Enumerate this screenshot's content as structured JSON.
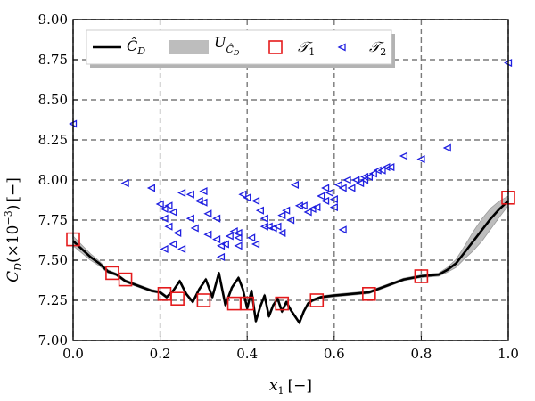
{
  "chart_data": {
    "type": "line",
    "xlabel_main": "x",
    "xlabel_sub": "1",
    "xlabel_unit": "[−]",
    "ylabel_main": "C",
    "ylabel_sub": "D",
    "ylabel_factor": "(×10",
    "ylabel_exp": "−3",
    "ylabel_tail": ")",
    "ylabel_unit": "[−]",
    "xlim": [
      0.0,
      1.0
    ],
    "ylim": [
      7.0,
      9.0
    ],
    "xticks": [
      0.0,
      0.2,
      0.4,
      0.6,
      0.8,
      1.0
    ],
    "xtick_labels": [
      "0.0",
      "0.2",
      "0.4",
      "0.6",
      "0.8",
      "1.0"
    ],
    "yticks": [
      7.0,
      7.25,
      7.5,
      7.75,
      8.0,
      8.25,
      8.5,
      8.75,
      9.0
    ],
    "ytick_labels": [
      "7.00",
      "7.25",
      "7.50",
      "7.75",
      "8.00",
      "8.25",
      "8.50",
      "8.75",
      "9.00"
    ],
    "grid": true,
    "legend_position": "top-left",
    "legend": [
      {
        "key": "line",
        "main": "Ĉ",
        "sub": "D"
      },
      {
        "key": "band",
        "main": "U",
        "sub": "Ĉ",
        "subsub": "D"
      },
      {
        "key": "t1",
        "main": "𝒯",
        "sub": "1"
      },
      {
        "key": "t2",
        "main": "𝒯",
        "sub": "2"
      }
    ],
    "colors": {
      "line": "#000000",
      "band": "#bdbdbd",
      "t1": "#e41a1c",
      "t2": "#1f1fe0"
    },
    "series": [
      {
        "key": "line",
        "x": [
          0.0,
          0.02,
          0.04,
          0.06,
          0.08,
          0.1,
          0.12,
          0.14,
          0.16,
          0.18,
          0.2,
          0.215,
          0.23,
          0.245,
          0.26,
          0.275,
          0.29,
          0.305,
          0.32,
          0.335,
          0.35,
          0.365,
          0.38,
          0.39,
          0.4,
          0.41,
          0.42,
          0.43,
          0.44,
          0.45,
          0.46,
          0.47,
          0.48,
          0.49,
          0.5,
          0.51,
          0.52,
          0.53,
          0.54,
          0.55,
          0.57,
          0.6,
          0.64,
          0.68,
          0.72,
          0.76,
          0.8,
          0.84,
          0.86,
          0.88,
          0.9,
          0.92,
          0.94,
          0.96,
          0.98,
          1.0
        ],
        "y": [
          7.62,
          7.57,
          7.52,
          7.48,
          7.43,
          7.41,
          7.37,
          7.35,
          7.33,
          7.31,
          7.3,
          7.27,
          7.31,
          7.37,
          7.29,
          7.24,
          7.32,
          7.38,
          7.27,
          7.42,
          7.22,
          7.33,
          7.39,
          7.32,
          7.2,
          7.31,
          7.12,
          7.21,
          7.28,
          7.15,
          7.22,
          7.26,
          7.18,
          7.24,
          7.19,
          7.15,
          7.11,
          7.18,
          7.23,
          7.25,
          7.27,
          7.28,
          7.29,
          7.3,
          7.34,
          7.38,
          7.4,
          7.41,
          7.44,
          7.48,
          7.55,
          7.62,
          7.69,
          7.76,
          7.82,
          7.87
        ],
        "band_halfwidth": [
          0.03,
          0.025,
          0.02,
          0.015,
          0.01,
          0.008,
          0.008,
          0.008,
          0.008,
          0.008,
          0.008,
          0.008,
          0.008,
          0.008,
          0.008,
          0.008,
          0.008,
          0.008,
          0.008,
          0.008,
          0.008,
          0.008,
          0.008,
          0.008,
          0.008,
          0.008,
          0.008,
          0.008,
          0.008,
          0.008,
          0.008,
          0.008,
          0.008,
          0.008,
          0.008,
          0.008,
          0.008,
          0.008,
          0.008,
          0.008,
          0.008,
          0.008,
          0.008,
          0.008,
          0.008,
          0.008,
          0.008,
          0.01,
          0.015,
          0.025,
          0.04,
          0.06,
          0.07,
          0.065,
          0.05,
          0.03
        ]
      },
      {
        "key": "t1",
        "x": [
          0.0,
          0.09,
          0.12,
          0.21,
          0.24,
          0.3,
          0.37,
          0.4,
          0.48,
          0.56,
          0.68,
          0.8,
          1.0
        ],
        "y": [
          7.63,
          7.42,
          7.38,
          7.29,
          7.26,
          7.25,
          7.23,
          7.23,
          7.23,
          7.25,
          7.29,
          7.4,
          7.89
        ]
      },
      {
        "key": "t2",
        "x": [
          0.0,
          0.12,
          0.18,
          0.2,
          0.21,
          0.21,
          0.21,
          0.22,
          0.23,
          0.22,
          0.23,
          0.24,
          0.25,
          0.25,
          0.27,
          0.27,
          0.28,
          0.29,
          0.3,
          0.31,
          0.31,
          0.3,
          0.33,
          0.33,
          0.34,
          0.34,
          0.35,
          0.36,
          0.37,
          0.38,
          0.38,
          0.38,
          0.39,
          0.4,
          0.41,
          0.42,
          0.42,
          0.43,
          0.44,
          0.44,
          0.45,
          0.46,
          0.47,
          0.48,
          0.48,
          0.49,
          0.5,
          0.51,
          0.52,
          0.53,
          0.54,
          0.55,
          0.56,
          0.57,
          0.58,
          0.58,
          0.59,
          0.6,
          0.6,
          0.61,
          0.62,
          0.62,
          0.63,
          0.64,
          0.65,
          0.66,
          0.67,
          0.67,
          0.68,
          0.69,
          0.7,
          0.71,
          0.72,
          0.73,
          0.76,
          0.8,
          0.86,
          1.0
        ],
        "y": [
          8.35,
          7.98,
          7.95,
          7.85,
          7.82,
          7.76,
          7.57,
          7.84,
          7.8,
          7.71,
          7.6,
          7.67,
          7.92,
          7.57,
          7.91,
          7.76,
          7.7,
          7.87,
          7.93,
          7.79,
          7.66,
          7.86,
          7.76,
          7.63,
          7.59,
          7.52,
          7.6,
          7.65,
          7.68,
          7.67,
          7.64,
          7.59,
          7.91,
          7.89,
          7.64,
          7.6,
          7.87,
          7.81,
          7.76,
          7.71,
          7.71,
          7.7,
          7.71,
          7.78,
          7.67,
          7.81,
          7.75,
          7.97,
          7.84,
          7.84,
          7.8,
          7.82,
          7.83,
          7.9,
          7.95,
          7.87,
          7.92,
          7.88,
          7.83,
          7.97,
          7.69,
          7.95,
          8.0,
          7.95,
          8.0,
          7.98,
          8.0,
          8.02,
          8.02,
          8.04,
          8.06,
          8.06,
          8.08,
          8.08,
          8.15,
          8.13,
          8.2,
          8.73
        ]
      }
    ]
  }
}
